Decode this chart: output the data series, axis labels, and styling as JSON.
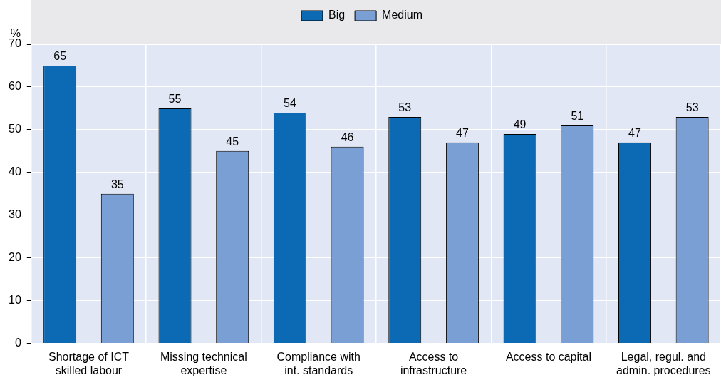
{
  "chart_data": {
    "type": "bar",
    "ylabel": "%",
    "categories": [
      "Shortage of ICT skilled labour",
      "Missing technical expertise",
      "Compliance with int. standards",
      "Access to infrastructure",
      "Access to capital",
      "Legal, regul. and admin. procedures"
    ],
    "series": [
      {
        "name": "Big",
        "color": "#0b6ab3",
        "values": [
          65,
          55,
          54,
          53,
          49,
          47
        ]
      },
      {
        "name": "Medium",
        "color": "#7a9fd5",
        "values": [
          35,
          45,
          46,
          47,
          51,
          53
        ]
      }
    ],
    "ylim": [
      0,
      70
    ],
    "yticks": [
      0,
      10,
      20,
      30,
      40,
      50,
      60,
      70
    ],
    "grid": true,
    "legend": "top",
    "data_labels": true
  }
}
